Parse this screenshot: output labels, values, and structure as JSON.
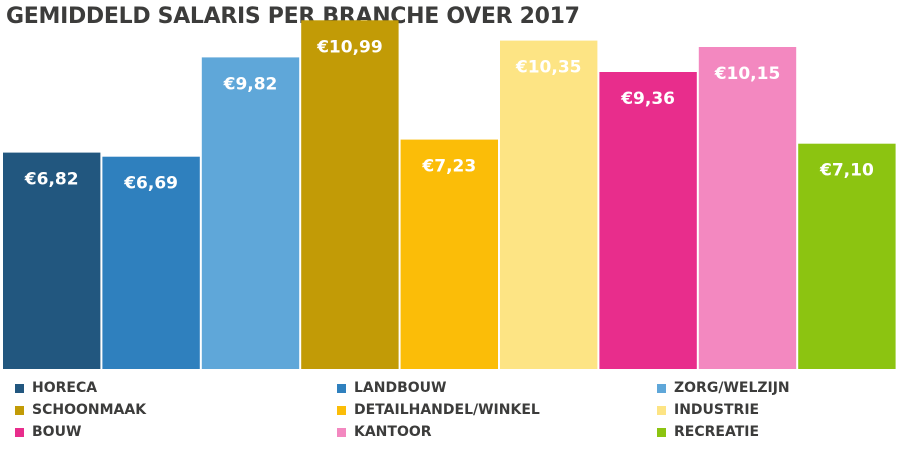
{
  "chart_data": {
    "type": "bar",
    "title": "GEMIDDELD SALARIS PER BRANCHE OVER 2017",
    "categories": [
      "HORECA",
      "LANDBOUW",
      "ZORG/WELZIJN",
      "SCHOONMAAK",
      "DETAILHANDEL/WINKEL",
      "INDUSTRIE",
      "BOUW",
      "KANTOOR",
      "RECREATIE"
    ],
    "values": [
      6.82,
      6.69,
      9.82,
      10.99,
      7.23,
      10.35,
      9.36,
      10.15,
      7.1
    ],
    "value_labels": [
      "€6,82",
      "€6,69",
      "€9,82",
      "€10,99",
      "€7,23",
      "€10,35",
      "€9,36",
      "€10,15",
      "€7,10"
    ],
    "colors": [
      "#22577f",
      "#2f80be",
      "#5fa7d9",
      "#c29b06",
      "#fbbd08",
      "#fde484",
      "#e82d8c",
      "#f388c0",
      "#8cc411"
    ],
    "ylim": [
      0,
      11
    ],
    "grid": false,
    "legend_position": "bottom",
    "xlabel": "",
    "ylabel": ""
  }
}
